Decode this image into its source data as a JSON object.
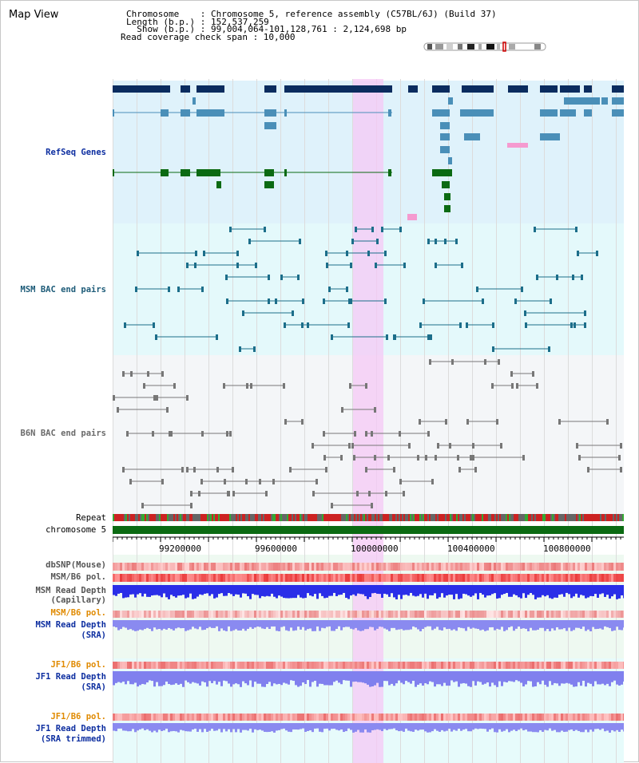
{
  "title": "Map View",
  "header": {
    "chromosome_label": "Chromosome    : Chromosome 5, reference assembly (C57BL/6J) (Build 37)",
    "length_label": "Length (b.p.) : 152,537,259",
    "show_label": "  Show (b.p.) : 99,004,064-101,128,761 : 2,124,698 bp",
    "coverage_label": "Read coverage check span : 10,000"
  },
  "tracks": {
    "refseq": "RefSeq Genes",
    "msm_bac": "MSM BAC end pairs",
    "b6n_bac": "B6N BAC end pairs",
    "repeat": "Repeat",
    "chromosome": "chromosome 5",
    "dbsnp": "dbSNP(Mouse)",
    "msm_b6_pol_1": "MSM/B6 pol.",
    "msm_depth_cap_1": "MSM Read Depth",
    "msm_depth_cap_2": "(Capillary)",
    "msm_b6_pol_2": "MSM/B6 pol.",
    "msm_depth_sra_1": "MSM Read Depth",
    "msm_depth_sra_2": "(SRA)",
    "jf1_b6_pol_1": "JF1/B6 pol.",
    "jf1_depth_sra_1": "JF1 Read Depth",
    "jf1_depth_sra_2": "(SRA)",
    "jf1_b6_pol_2": "JF1/B6 pol.",
    "jf1_depth_trim_1": "JF1 Read Depth",
    "jf1_depth_trim_2": "(SRA trimmed)"
  },
  "ruler": {
    "ticks": [
      "99200000",
      "99600000",
      "100000000",
      "100400000",
      "100800000"
    ]
  },
  "colors": {
    "refseq_bg": "#dff2fb",
    "msm_bg": "#e4f9fb",
    "b6n_bg": "#f4f6f8",
    "lower_bg": "#eef9f1",
    "jf1_bg": "#e7fbfb",
    "gene_dark": "#0b2c5f",
    "gene_mid": "#4a8fb8",
    "gene_green": "#0b6a12",
    "bac_teal": "#1c6e8a",
    "bac_gray": "#777777",
    "chromosome_green": "#0b6a12",
    "highlight": "#f6c8f6"
  }
}
